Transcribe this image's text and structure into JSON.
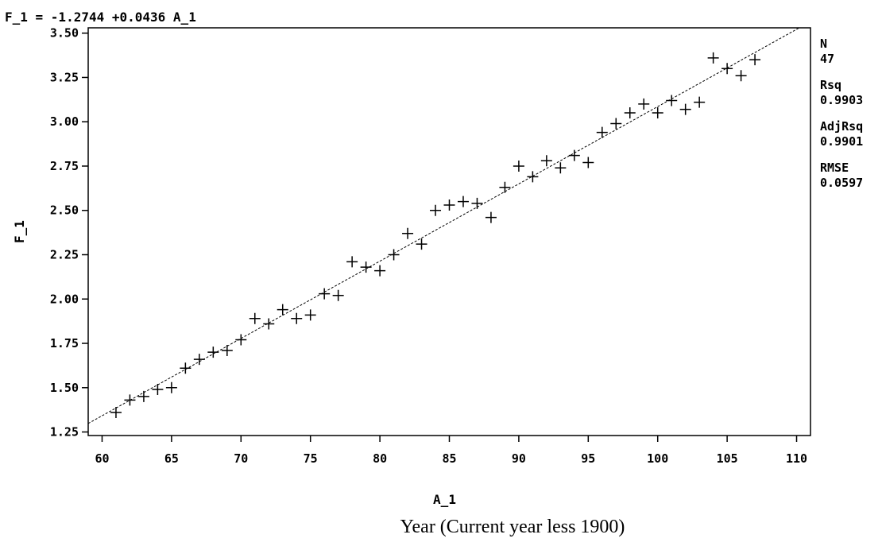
{
  "equation": "F_1 = -1.2744 +0.0436 A_1",
  "caption": "Year (Current year less 1900)",
  "stats": [
    {
      "label": "N",
      "value": "47"
    },
    {
      "label": "Rsq",
      "value": "0.9903"
    },
    {
      "label": "AdjRsq",
      "value": "0.9901"
    },
    {
      "label": "RMSE",
      "value": "0.0597"
    }
  ],
  "chart_data": {
    "type": "scatter",
    "xlabel": "A_1",
    "ylabel": "F_1",
    "xlim": [
      59,
      111
    ],
    "ylim": [
      1.23,
      3.53
    ],
    "xticks": [
      "60",
      "65",
      "70",
      "75",
      "80",
      "85",
      "90",
      "95",
      "100",
      "105",
      "110"
    ],
    "yticks": [
      "1.25",
      "1.50",
      "1.75",
      "2.00",
      "2.25",
      "2.50",
      "2.75",
      "3.00",
      "3.25",
      "3.50"
    ],
    "grid": false,
    "marker": "+",
    "fit_line": {
      "intercept": -1.2744,
      "slope": 0.0436
    },
    "x": [
      61,
      62,
      63,
      64,
      65,
      66,
      67,
      68,
      69,
      70,
      71,
      72,
      73,
      74,
      75,
      76,
      77,
      78,
      79,
      80,
      81,
      82,
      83,
      84,
      85,
      86,
      87,
      88,
      89,
      90,
      91,
      92,
      93,
      94,
      95,
      96,
      97,
      98,
      99,
      100,
      101,
      102,
      103,
      104,
      105,
      106,
      107
    ],
    "y": [
      1.36,
      1.43,
      1.45,
      1.49,
      1.5,
      1.61,
      1.66,
      1.7,
      1.71,
      1.77,
      1.89,
      1.86,
      1.94,
      1.89,
      1.91,
      2.03,
      2.02,
      2.21,
      2.18,
      2.16,
      2.25,
      2.37,
      2.31,
      2.5,
      2.53,
      2.55,
      2.54,
      2.46,
      2.63,
      2.75,
      2.69,
      2.78,
      2.74,
      2.81,
      2.77,
      2.94,
      2.99,
      3.05,
      3.1,
      3.05,
      3.12,
      3.07,
      3.11,
      3.36,
      3.3,
      3.26,
      3.35
    ]
  }
}
